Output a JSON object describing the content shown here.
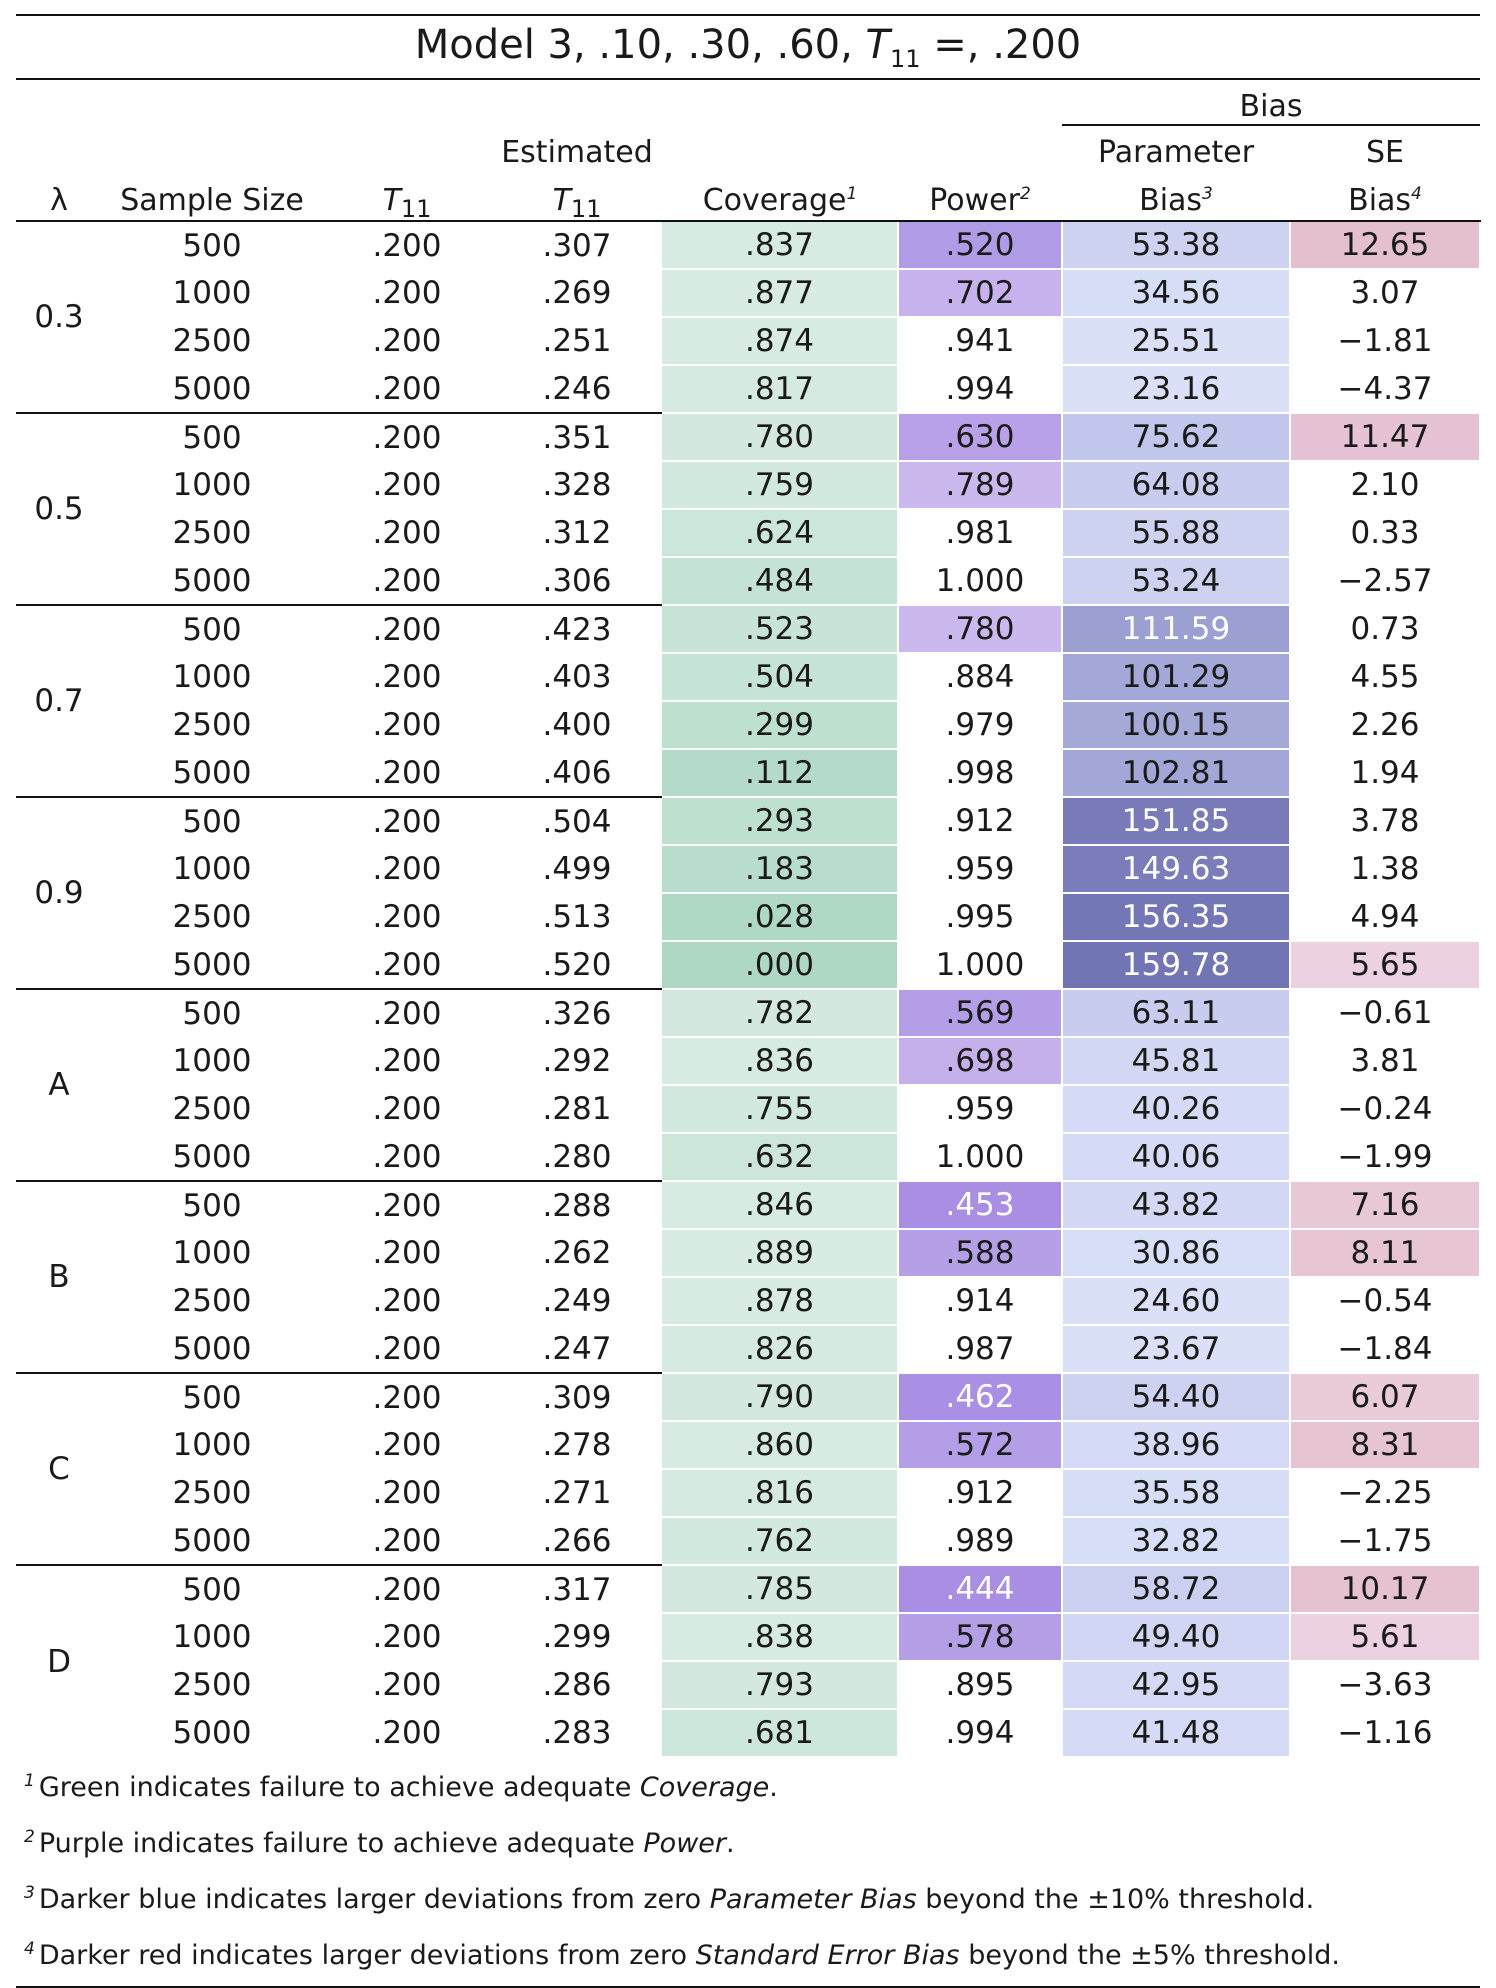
{
  "title": {
    "prefix": "Model 3, .10, .30, .60, ",
    "sym": "T",
    "sub": "11",
    "suffix": " =, .200"
  },
  "headers": {
    "bias_group": "Bias",
    "lambda": "λ",
    "sample_size": "Sample Size",
    "t_sym": "T",
    "t_sub": "11",
    "estimated": "Estimated",
    "coverage": "Coverage",
    "coverage_sup": "1",
    "power": "Power",
    "power_sup": "2",
    "param_top": "Parameter",
    "param_bottom": "Bias",
    "param_sup": "3",
    "se_top": "SE",
    "se_bottom": "Bias",
    "se_sup": "4"
  },
  "colors": {
    "coverage_base": "#d6ebe2",
    "coverage_dark": "#a9d5c2",
    "power_light": "#c7b2ed",
    "power_dark": "#a98ee4",
    "param_light": "#d9e0f7",
    "param_dark": "#7275b4",
    "se_light": "#ecd2e0",
    "se_dark": "#e4bfd0"
  },
  "groups": [
    {
      "lambda": "0.3",
      "rows": [
        {
          "n": "500",
          "t": ".200",
          "est": ".307",
          "cov": ".837",
          "pow": ".520",
          "pb": "53.38",
          "se": "12.65",
          "covc": "#d6ebe2",
          "powc": "#b09be6",
          "pbc": "#cdd2f1",
          "sec": "#e4bfd0"
        },
        {
          "n": "1000",
          "t": ".200",
          "est": ".269",
          "cov": ".877",
          "pow": ".702",
          "pb": "34.56",
          "se": "3.07",
          "covc": "#d8ece3",
          "powc": "#c7b2ed",
          "pbc": "#d6ddf7",
          "sec": ""
        },
        {
          "n": "2500",
          "t": ".200",
          "est": ".251",
          "cov": ".874",
          "pow": ".941",
          "pb": "25.51",
          "se": "−1.81",
          "covc": "#d8ece3",
          "powc": "",
          "pbc": "#d9e0f7",
          "sec": ""
        },
        {
          "n": "5000",
          "t": ".200",
          "est": ".246",
          "cov": ".817",
          "pow": ".994",
          "pb": "23.16",
          "se": "−4.37",
          "covc": "#d5ebe1",
          "powc": "",
          "pbc": "#d9e0f7",
          "sec": ""
        }
      ]
    },
    {
      "lambda": "0.5",
      "rows": [
        {
          "n": "500",
          "t": ".200",
          "est": ".351",
          "cov": ".780",
          "pow": ".630",
          "pb": "75.62",
          "se": "11.47",
          "covc": "#d3e9df",
          "powc": "#b8a1e9",
          "pbc": "#c1c7ec",
          "sec": "#e6c3d4"
        },
        {
          "n": "1000",
          "t": ".200",
          "est": ".328",
          "cov": ".759",
          "pow": ".789",
          "pb": "64.08",
          "se": "2.10",
          "covc": "#d2e9df",
          "powc": "#cbb8ee",
          "pbc": "#c8cdef",
          "sec": ""
        },
        {
          "n": "2500",
          "t": ".200",
          "est": ".312",
          "cov": ".624",
          "pow": ".981",
          "pb": "55.88",
          "se": "0.33",
          "covc": "#cbe6da",
          "powc": "",
          "pbc": "#cdd2f1",
          "sec": ""
        },
        {
          "n": "5000",
          "t": ".200",
          "est": ".306",
          "cov": ".484",
          "pow": "1.000",
          "pb": "53.24",
          "se": "−2.57",
          "covc": "#c5e3d5",
          "powc": "",
          "pbc": "#cdd2f1",
          "sec": ""
        }
      ]
    },
    {
      "lambda": "0.7",
      "rows": [
        {
          "n": "500",
          "t": ".200",
          "est": ".423",
          "cov": ".523",
          "pow": ".780",
          "pb": "111.59",
          "se": "0.73",
          "covc": "#c7e4d7",
          "powc": "#cbb8ee",
          "pbc": "#9c9fd2",
          "sec": "",
          "pbw": true
        },
        {
          "n": "1000",
          "t": ".200",
          "est": ".403",
          "cov": ".504",
          "pow": ".884",
          "pb": "101.29",
          "se": "4.55",
          "covc": "#c6e4d6",
          "powc": "",
          "pbc": "#a4a8d8",
          "sec": ""
        },
        {
          "n": "2500",
          "t": ".200",
          "est": ".400",
          "cov": ".299",
          "pow": ".979",
          "pb": "100.15",
          "se": "2.26",
          "covc": "#bde0cf",
          "powc": "",
          "pbc": "#a5a9d8",
          "sec": ""
        },
        {
          "n": "5000",
          "t": ".200",
          "est": ".406",
          "cov": ".112",
          "pow": ".998",
          "pb": "102.81",
          "se": "1.94",
          "covc": "#b4dbc9",
          "powc": "",
          "pbc": "#a3a7d7",
          "sec": ""
        }
      ]
    },
    {
      "lambda": "0.9",
      "rows": [
        {
          "n": "500",
          "t": ".200",
          "est": ".504",
          "cov": ".293",
          "pow": ".912",
          "pb": "151.85",
          "se": "3.78",
          "covc": "#bde0cf",
          "powc": "",
          "pbc": "#787bb8",
          "sec": "",
          "pbw": true
        },
        {
          "n": "1000",
          "t": ".200",
          "est": ".499",
          "cov": ".183",
          "pow": ".959",
          "pb": "149.63",
          "se": "1.38",
          "covc": "#b8ddcc",
          "powc": "",
          "pbc": "#7a7dba",
          "sec": "",
          "pbw": true
        },
        {
          "n": "2500",
          "t": ".200",
          "est": ".513",
          "cov": ".028",
          "pow": ".995",
          "pb": "156.35",
          "se": "4.94",
          "covc": "#afd8c5",
          "powc": "",
          "pbc": "#7477b5",
          "sec": "",
          "pbw": true
        },
        {
          "n": "5000",
          "t": ".200",
          "est": ".520",
          "cov": ".000",
          "pow": "1.000",
          "pb": "159.78",
          "se": "5.65",
          "covc": "#aed7c4",
          "powc": "",
          "pbc": "#7275b4",
          "sec": "#ecd2e0",
          "pbw": true
        }
      ]
    },
    {
      "lambda": "A",
      "rows": [
        {
          "n": "500",
          "t": ".200",
          "est": ".326",
          "cov": ".782",
          "pow": ".569",
          "pb": "63.11",
          "se": "−0.61",
          "covc": "#d3e9df",
          "powc": "#b39ee7",
          "pbc": "#c8cdef",
          "sec": ""
        },
        {
          "n": "1000",
          "t": ".200",
          "est": ".292",
          "cov": ".836",
          "pow": ".698",
          "pb": "45.81",
          "se": "3.81",
          "covc": "#d6ebe1",
          "powc": "#c5b0ec",
          "pbc": "#d2d8f4",
          "sec": ""
        },
        {
          "n": "2500",
          "t": ".200",
          "est": ".281",
          "cov": ".755",
          "pow": ".959",
          "pb": "40.26",
          "se": "−0.24",
          "covc": "#d2e9df",
          "powc": "",
          "pbc": "#d5dbf6",
          "sec": ""
        },
        {
          "n": "5000",
          "t": ".200",
          "est": ".280",
          "cov": ".632",
          "pow": "1.000",
          "pb": "40.06",
          "se": "−1.99",
          "covc": "#cce6da",
          "powc": "",
          "pbc": "#d5dbf6",
          "sec": ""
        }
      ]
    },
    {
      "lambda": "B",
      "rows": [
        {
          "n": "500",
          "t": ".200",
          "est": ".288",
          "cov": ".846",
          "pow": ".453",
          "pb": "43.82",
          "se": "7.16",
          "covc": "#d6ebe2",
          "powc": "#a98ee4",
          "pbc": "#d3d9f5",
          "sec": "#e8c8d7",
          "poww": true
        },
        {
          "n": "1000",
          "t": ".200",
          "est": ".262",
          "cov": ".889",
          "pow": ".588",
          "pb": "30.86",
          "se": "8.11",
          "covc": "#d9ece4",
          "powc": "#b5a0e8",
          "pbc": "#d7def7",
          "sec": "#e7c5d5"
        },
        {
          "n": "2500",
          "t": ".200",
          "est": ".249",
          "cov": ".878",
          "pow": ".914",
          "pb": "24.60",
          "se": "−0.54",
          "covc": "#d8ece3",
          "powc": "",
          "pbc": "#d9e0f7",
          "sec": ""
        },
        {
          "n": "5000",
          "t": ".200",
          "est": ".247",
          "cov": ".826",
          "pow": ".987",
          "pb": "23.67",
          "se": "−1.84",
          "covc": "#d5ebe1",
          "powc": "",
          "pbc": "#d9e0f7",
          "sec": ""
        }
      ]
    },
    {
      "lambda": "C",
      "rows": [
        {
          "n": "500",
          "t": ".200",
          "est": ".309",
          "cov": ".790",
          "pow": ".462",
          "pb": "54.40",
          "se": "6.07",
          "covc": "#d3e9df",
          "powc": "#aa90e4",
          "pbc": "#cdd2f1",
          "sec": "#eacbd9",
          "poww": true
        },
        {
          "n": "1000",
          "t": ".200",
          "est": ".278",
          "cov": ".860",
          "pow": ".572",
          "pb": "38.96",
          "se": "8.31",
          "covc": "#d7ebe2",
          "powc": "#b39ee7",
          "pbc": "#d5dbf6",
          "sec": "#e6c4d4"
        },
        {
          "n": "2500",
          "t": ".200",
          "est": ".271",
          "cov": ".816",
          "pow": ".912",
          "pb": "35.58",
          "se": "−2.25",
          "covc": "#d5ebe1",
          "powc": "",
          "pbc": "#d6ddf7",
          "sec": ""
        },
        {
          "n": "5000",
          "t": ".200",
          "est": ".266",
          "cov": ".762",
          "pow": ".989",
          "pb": "32.82",
          "se": "−1.75",
          "covc": "#d2e9df",
          "powc": "",
          "pbc": "#d7def7",
          "sec": ""
        }
      ]
    },
    {
      "lambda": "D",
      "rows": [
        {
          "n": "500",
          "t": ".200",
          "est": ".317",
          "cov": ".785",
          "pow": ".444",
          "pb": "58.72",
          "se": "10.17",
          "covc": "#d3e9df",
          "powc": "#a98ee4",
          "pbc": "#cbd0f0",
          "sec": "#e5c1d2",
          "poww": true
        },
        {
          "n": "1000",
          "t": ".200",
          "est": ".299",
          "cov": ".838",
          "pow": ".578",
          "pb": "49.40",
          "se": "5.61",
          "covc": "#d6ebe1",
          "powc": "#b49fe7",
          "pbc": "#d0d6f3",
          "sec": "#ecd2e0"
        },
        {
          "n": "2500",
          "t": ".200",
          "est": ".286",
          "cov": ".793",
          "pow": ".895",
          "pb": "42.95",
          "se": "−3.63",
          "covc": "#d3e9df",
          "powc": "",
          "pbc": "#d4daf5",
          "sec": ""
        },
        {
          "n": "5000",
          "t": ".200",
          "est": ".283",
          "cov": ".681",
          "pow": ".994",
          "pb": "41.48",
          "se": "−1.16",
          "covc": "#cee7dc",
          "powc": "",
          "pbc": "#d5dbf6",
          "sec": ""
        }
      ]
    }
  ],
  "notes": [
    {
      "num": "1",
      "pre": "Green indicates failure to achieve adequate ",
      "em": "Coverage",
      "post": "."
    },
    {
      "num": "2",
      "pre": "Purple indicates failure to achieve adequate ",
      "em": "Power",
      "post": "."
    },
    {
      "num": "3",
      "pre": "Darker blue indicates larger deviations from zero ",
      "em": "Parameter Bias",
      "post": " beyond the ±10% threshold."
    },
    {
      "num": "4",
      "pre": "Darker red indicates larger deviations from zero ",
      "em": "Standard Error Bias",
      "post": " beyond the ±5% threshold."
    }
  ]
}
